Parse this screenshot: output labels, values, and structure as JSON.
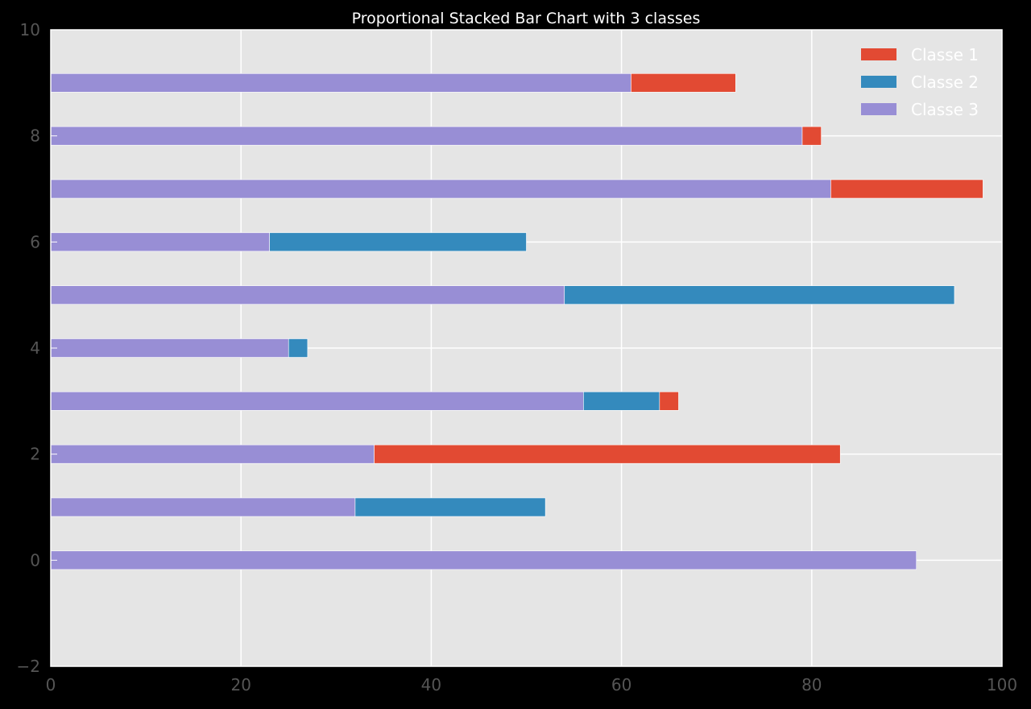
{
  "chart_data": {
    "type": "bar",
    "orientation": "horizontal",
    "stacked": true,
    "title": "Proportional Stacked Bar Chart with 3 classes",
    "xlabel": "",
    "ylabel": "",
    "categories": [
      0,
      1,
      2,
      3,
      4,
      5,
      6,
      7,
      8,
      9
    ],
    "series": [
      {
        "name": "Classe 3",
        "color": "#988ED5",
        "values": [
          91,
          32,
          34,
          56,
          25,
          54,
          23,
          82,
          79,
          61
        ]
      },
      {
        "name": "Classe 2",
        "color": "#348ABD",
        "values": [
          0,
          20,
          0,
          8,
          2,
          41,
          27,
          0,
          0,
          0
        ]
      },
      {
        "name": "Classe 1",
        "color": "#E24A33",
        "values": [
          0,
          0,
          49,
          2,
          0,
          0,
          0,
          16,
          2,
          11
        ]
      }
    ],
    "legend_order": [
      "Classe 1",
      "Classe 2",
      "Classe 3"
    ],
    "xlim": [
      0,
      100
    ],
    "ylim": [
      -2,
      10
    ],
    "xticks": [
      0,
      20,
      40,
      60,
      80,
      100
    ],
    "yticks": [
      -2,
      0,
      2,
      4,
      6,
      8,
      10
    ],
    "xtick_labels": [
      "0",
      "20",
      "40",
      "60",
      "80",
      "100"
    ],
    "ytick_labels": [
      "−2",
      "0",
      "2",
      "4",
      "6",
      "8",
      "10"
    ],
    "grid": true,
    "legend_position": "top-right",
    "background_color": "#E5E5E5",
    "figure_background": "#000000"
  }
}
